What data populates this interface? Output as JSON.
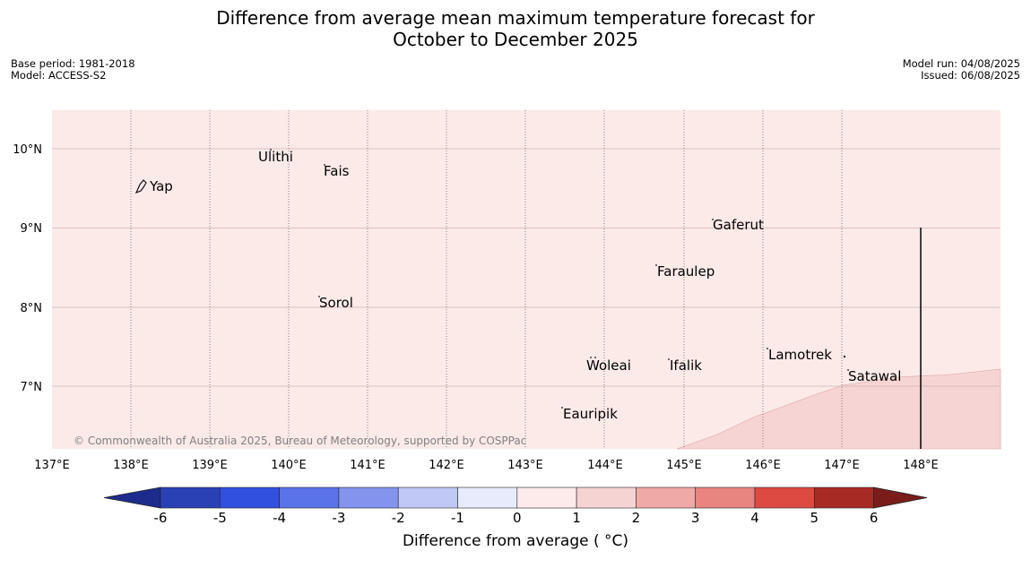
{
  "title_line1": "Difference from average mean maximum temperature forecast for",
  "title_line2": "October to December 2025",
  "meta_left": [
    "Base period: 1981-2018",
    "Model: ACCESS-S2"
  ],
  "meta_right": [
    "Model run: 04/08/2025",
    "Issued: 06/08/2025"
  ],
  "credit": "© Commonwealth of Australia 2025, Bureau of Meteorology, supported by COSPPac",
  "colorbar": {
    "title": "Difference from average ( °C)",
    "ticks": [
      "-6",
      "-5",
      "-4",
      "-3",
      "-2",
      "-1",
      "0",
      "1",
      "2",
      "3",
      "4",
      "5",
      "6"
    ],
    "colors": [
      "#1d2c8c",
      "#2a41b5",
      "#3150e0",
      "#5a73e8",
      "#8494ee",
      "#c0c8f6",
      "#e8ebfb",
      "#fdebeb",
      "#f6d3d3",
      "#efaaa7",
      "#e88580",
      "#dc4a42",
      "#a82a25",
      "#7a1d1a"
    ],
    "map_fill_main": "#fbeae8",
    "map_fill_warm": "#f6d4d3"
  },
  "axes": {
    "lon_labels": [
      "137°E",
      "138°E",
      "139°E",
      "140°E",
      "141°E",
      "142°E",
      "143°E",
      "144°E",
      "145°E",
      "146°E",
      "147°E",
      "148°E"
    ],
    "lat_labels": [
      "10°N",
      "9°N",
      "8°N",
      "7°N"
    ]
  },
  "places": [
    "Yap",
    "Ulithi",
    "Fais",
    "Gaferut",
    "Faraulep",
    "Sorol",
    "Woleai",
    "Ifalik",
    "Lamotrek",
    "Satawal",
    "Eauripik"
  ],
  "map_values": {
    "main_category": "0 to 1",
    "southeast_category": "1 to 2"
  }
}
